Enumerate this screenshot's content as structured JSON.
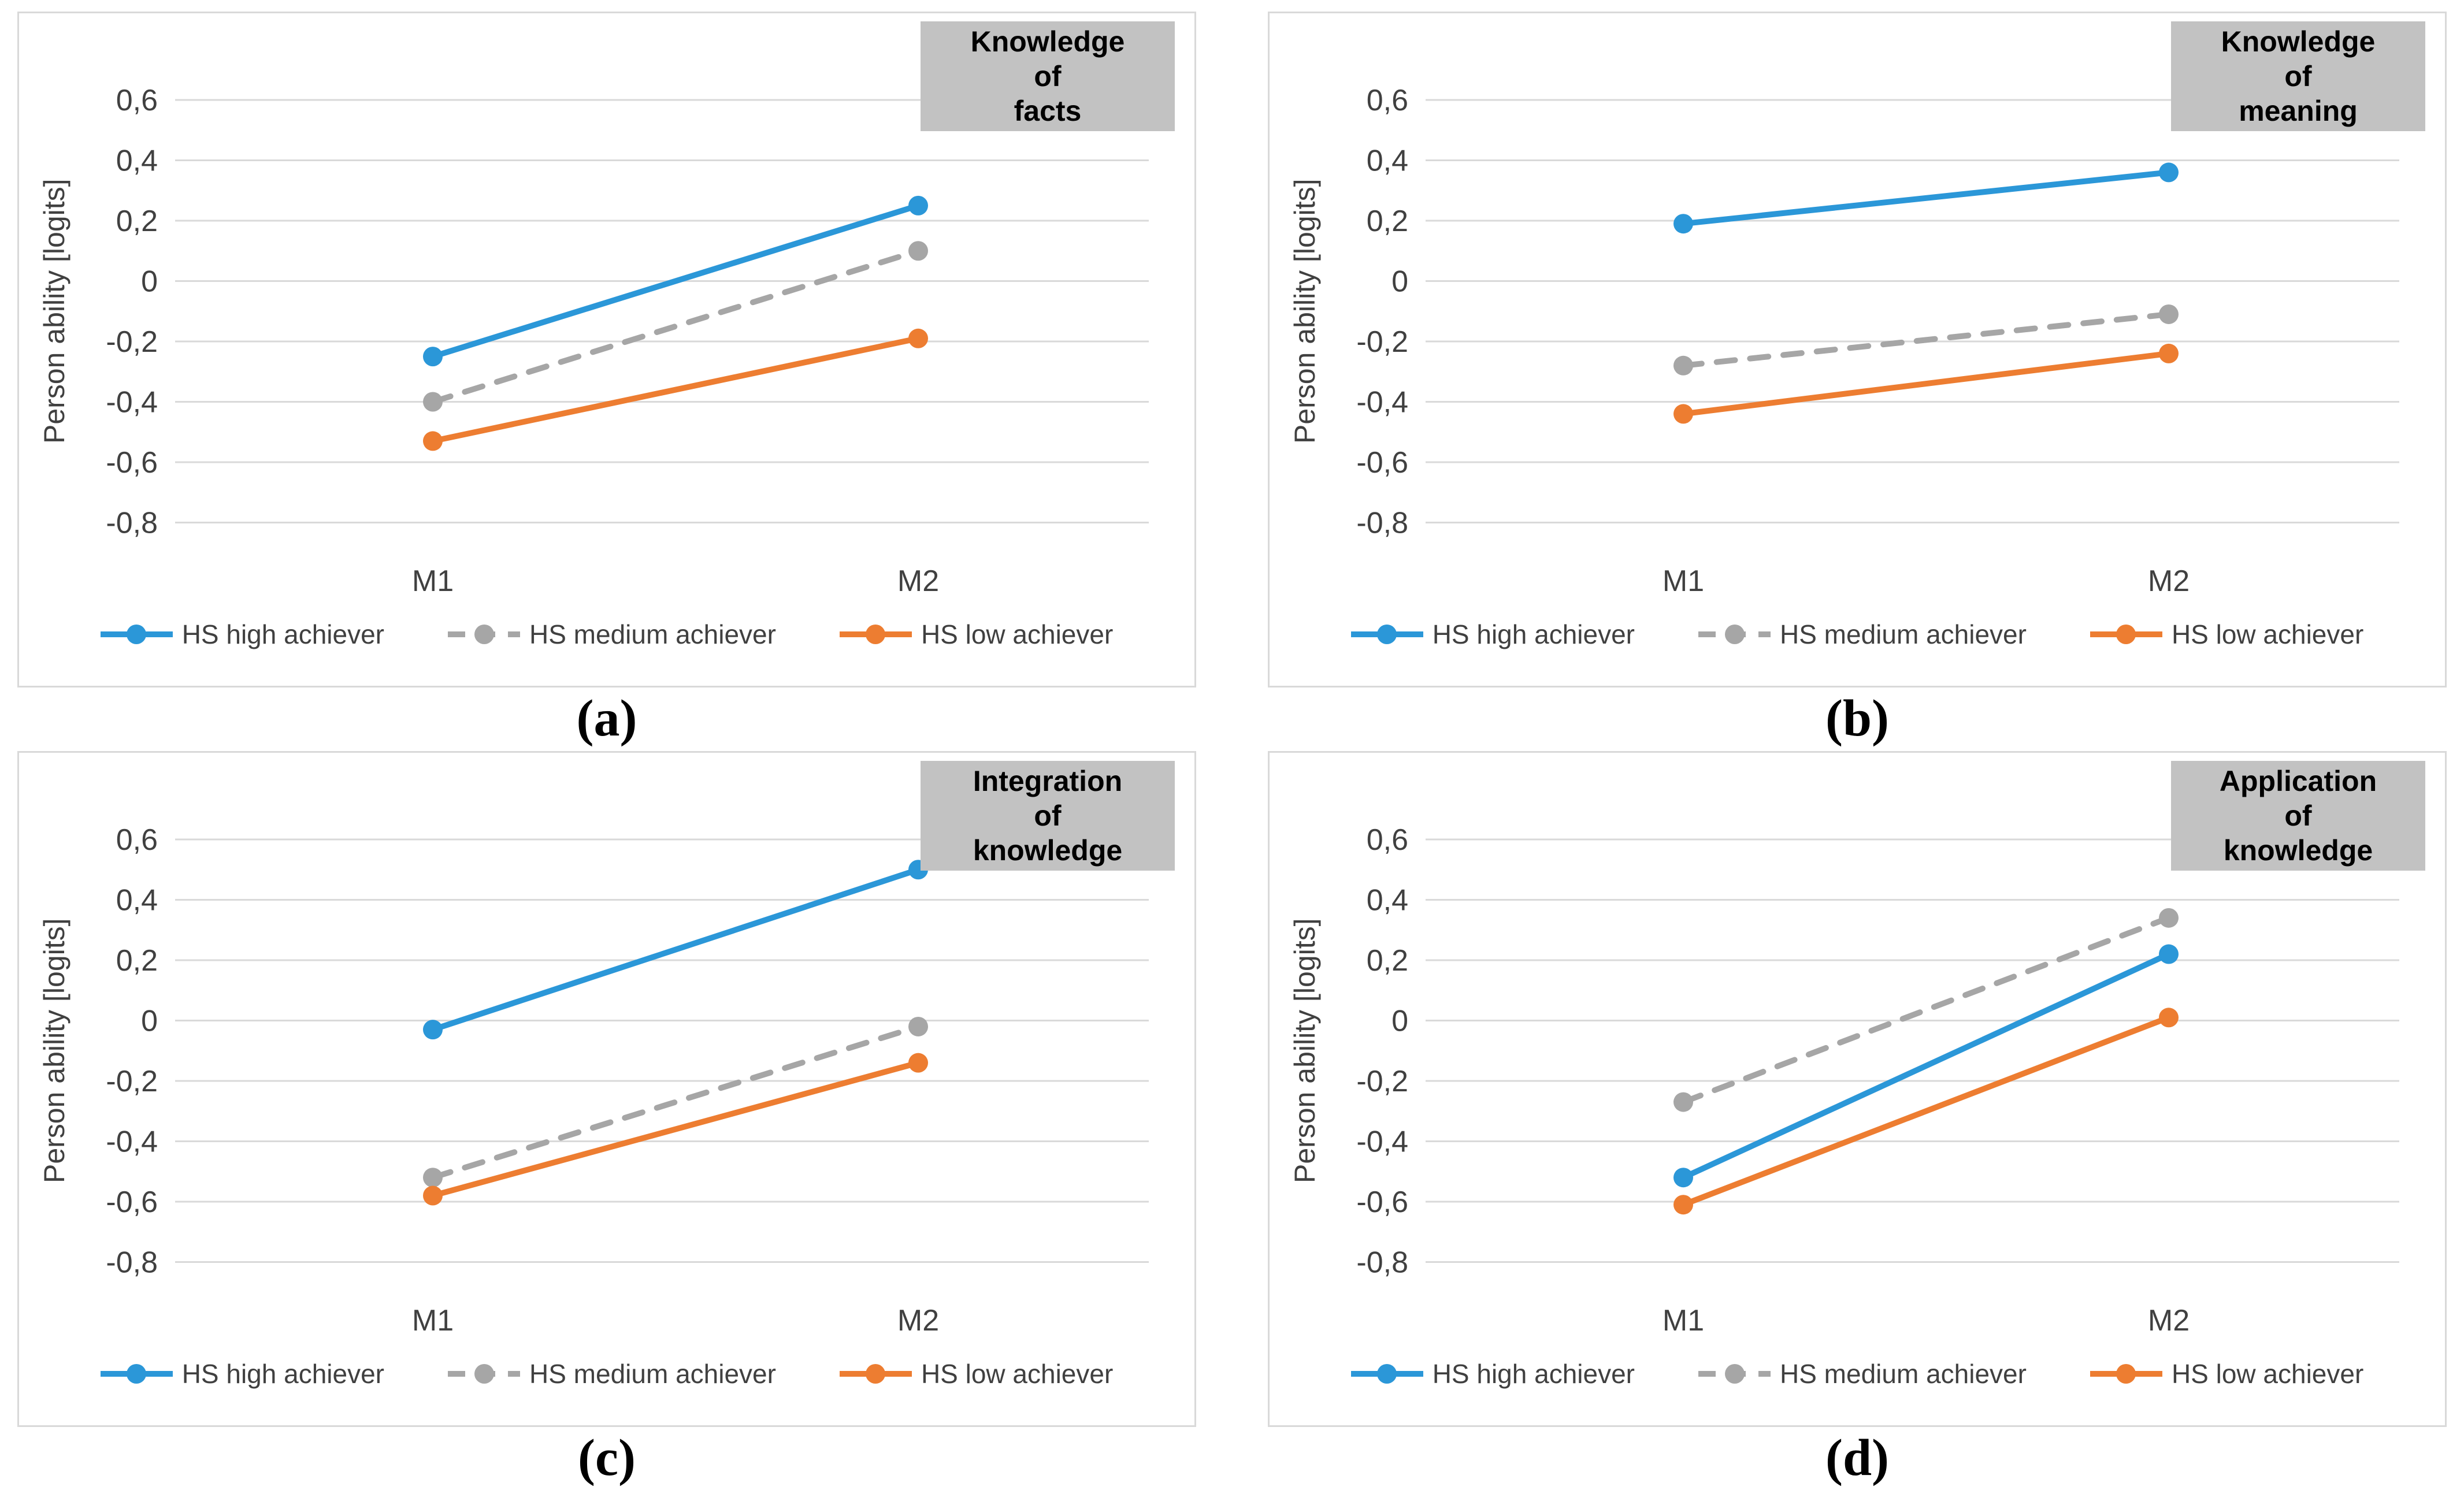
{
  "figure": {
    "y_axis_label": "Person ability [logits]",
    "x_categories": [
      "M1",
      "M2"
    ],
    "y_ticks": [
      "0,6",
      "0,4",
      "0,2",
      "0",
      "-0,2",
      "-0,4",
      "-0,6",
      "-0,8"
    ],
    "y_tick_values": [
      0.6,
      0.4,
      0.2,
      0,
      -0.2,
      -0.4,
      -0.6,
      -0.8
    ],
    "legend": [
      {
        "label": "HS high achiever",
        "color": "#2b97d8",
        "dash": false
      },
      {
        "label": "HS medium achiever",
        "color": "#a6a6a6",
        "dash": true
      },
      {
        "label": "HS low achiever",
        "color": "#ed7d31",
        "dash": false
      }
    ],
    "colors": {
      "gridline": "#d9d9d9",
      "axis_text": "#404040",
      "title_box_bg": "#c2c2c2",
      "panel_border": "#d9d9d9"
    }
  },
  "chart_data": [
    {
      "type": "line",
      "panel": "a",
      "caption": "(a)",
      "title": "Knowledge of facts",
      "title_lines": [
        "Knowledge",
        "of",
        "facts"
      ],
      "x": [
        "M1",
        "M2"
      ],
      "ylim": [
        -0.8,
        0.6
      ],
      "ylabel": "Person ability [logits]",
      "grid": true,
      "legend_position": "bottom",
      "series": [
        {
          "name": "HS high achiever",
          "values": [
            -0.25,
            0.25
          ]
        },
        {
          "name": "HS medium achiever",
          "values": [
            -0.4,
            0.1
          ]
        },
        {
          "name": "HS low achiever",
          "values": [
            -0.53,
            -0.19
          ]
        }
      ]
    },
    {
      "type": "line",
      "panel": "b",
      "caption": "(b)",
      "title": "Knowledge of meaning",
      "title_lines": [
        "Knowledge",
        "of",
        "meaning"
      ],
      "x": [
        "M1",
        "M2"
      ],
      "ylim": [
        -0.8,
        0.6
      ],
      "ylabel": "Person ability [logits]",
      "grid": true,
      "legend_position": "bottom",
      "series": [
        {
          "name": "HS high achiever",
          "values": [
            0.19,
            0.36
          ]
        },
        {
          "name": "HS medium achiever",
          "values": [
            -0.28,
            -0.11
          ]
        },
        {
          "name": "HS low achiever",
          "values": [
            -0.44,
            -0.24
          ]
        }
      ]
    },
    {
      "type": "line",
      "panel": "c",
      "caption": "(c)",
      "title": "Integration of knowledge",
      "title_lines": [
        "Integration",
        "of",
        "knowledge"
      ],
      "x": [
        "M1",
        "M2"
      ],
      "ylim": [
        -0.8,
        0.6
      ],
      "ylabel": "Person ability [logits]",
      "grid": true,
      "legend_position": "bottom",
      "series": [
        {
          "name": "HS high achiever",
          "values": [
            -0.03,
            0.5
          ]
        },
        {
          "name": "HS medium achiever",
          "values": [
            -0.52,
            -0.02
          ]
        },
        {
          "name": "HS low achiever",
          "values": [
            -0.58,
            -0.14
          ]
        }
      ]
    },
    {
      "type": "line",
      "panel": "d",
      "caption": "(d)",
      "title": "Application of knowledge",
      "title_lines": [
        "Application",
        "of",
        "knowledge"
      ],
      "x": [
        "M1",
        "M2"
      ],
      "ylim": [
        -0.8,
        0.6
      ],
      "ylabel": "Person ability [logits]",
      "grid": true,
      "legend_position": "bottom",
      "series": [
        {
          "name": "HS high achiever",
          "values": [
            -0.52,
            0.22
          ]
        },
        {
          "name": "HS medium achiever",
          "values": [
            -0.27,
            0.34
          ]
        },
        {
          "name": "HS low achiever",
          "values": [
            -0.61,
            0.01
          ]
        }
      ]
    }
  ]
}
